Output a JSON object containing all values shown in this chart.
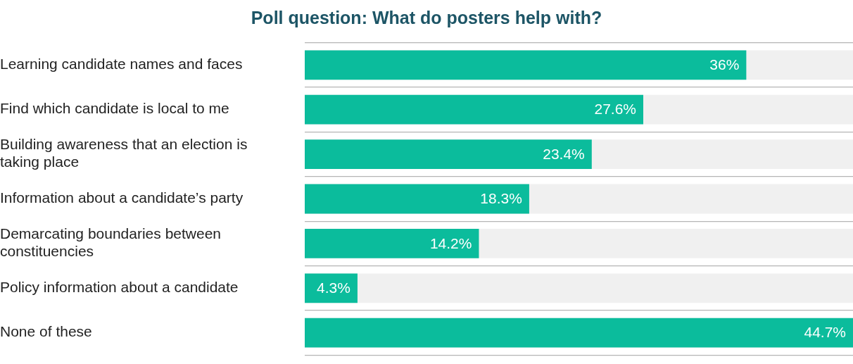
{
  "chart_data": {
    "type": "bar",
    "orientation": "horizontal",
    "title": "Poll question: What do posters help with?",
    "categories": [
      "Learning candidate names and faces",
      "Find which candidate is local to me",
      "Building awareness that an election is taking place",
      "Information about a candidate’s party",
      "Demarcating boundaries between constituencies",
      "Policy information about a candidate",
      "None of these"
    ],
    "values": [
      36,
      27.6,
      23.4,
      18.3,
      14.2,
      4.3,
      44.7
    ],
    "value_labels": [
      "36%",
      "27.6%",
      "23.4%",
      "18.3%",
      "14.2%",
      "4.3%",
      "44.7%"
    ],
    "color": "#0bbc9c",
    "xlim": [
      0,
      44.7
    ],
    "grid": "y",
    "tick_labels": "y",
    "legend": false
  }
}
